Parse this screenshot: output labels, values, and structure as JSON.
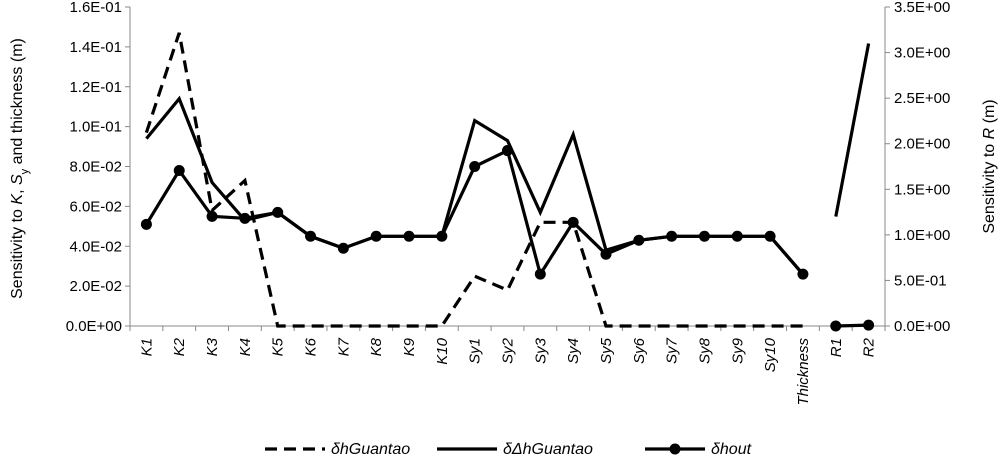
{
  "chart_data": {
    "type": "line",
    "categories": [
      "K1",
      "K2",
      "K3",
      "K4",
      "K5",
      "K6",
      "K7",
      "K8",
      "K9",
      "K10",
      "Sy1",
      "Sy2",
      "Sy3",
      "Sy4",
      "Sy5",
      "Sy6",
      "Sy7",
      "Sy8",
      "Sy9",
      "Sy10",
      "Thickness",
      "R1",
      "R2"
    ],
    "y_left": {
      "label_parts": [
        "Sensitivity to ",
        "K",
        ", ",
        "S",
        "y",
        " and thickness (m)"
      ],
      "ticks": [
        "0.0E+00",
        "2.0E-02",
        "4.0E-02",
        "6.0E-02",
        "8.0E-02",
        "1.0E-01",
        "1.2E-01",
        "1.4E-01",
        "1.6E-01"
      ],
      "ylim": [
        0,
        0.16
      ]
    },
    "y_right": {
      "label_parts": [
        "Sensitivity to ",
        "R",
        " (m)"
      ],
      "ticks": [
        "0.0E+00",
        "5.0E-01",
        "1.0E+00",
        "1.5E+00",
        "2.0E+00",
        "2.5E+00",
        "3.0E+00",
        "3.5E+00"
      ],
      "ylim": [
        0,
        3.5
      ]
    },
    "series": [
      {
        "name": "δhGuantao",
        "style": "dashed",
        "axis": "left",
        "values": [
          0.097,
          0.147,
          0.058,
          0.073,
          0.0,
          0.0,
          0.0,
          0.0,
          0.0,
          0.0,
          0.025,
          0.018,
          0.052,
          0.052,
          0.0,
          0.0,
          0.0,
          0.0,
          0.0,
          0.0,
          0.0,
          null,
          null
        ]
      },
      {
        "name": "δΔhGuantao",
        "style": "solid",
        "axis": "left",
        "values": [
          0.094,
          0.114,
          0.072,
          0.053,
          0.057,
          0.045,
          0.039,
          0.045,
          0.045,
          0.045,
          0.103,
          0.093,
          0.057,
          0.096,
          0.038,
          0.043,
          0.045,
          0.045,
          0.045,
          0.045,
          0.026,
          null,
          null
        ],
        "right_axis_values": [
          null,
          null,
          null,
          null,
          null,
          null,
          null,
          null,
          null,
          null,
          null,
          null,
          null,
          null,
          null,
          null,
          null,
          null,
          null,
          null,
          null,
          1.2,
          3.1
        ]
      },
      {
        "name": "δhout",
        "style": "solid-marker",
        "axis": "left",
        "values": [
          0.051,
          0.078,
          0.055,
          0.054,
          0.057,
          0.045,
          0.039,
          0.045,
          0.045,
          0.045,
          0.08,
          0.088,
          0.026,
          0.052,
          0.036,
          0.043,
          0.045,
          0.045,
          0.045,
          0.045,
          0.026,
          null,
          null
        ],
        "right_axis_values": [
          null,
          null,
          null,
          null,
          null,
          null,
          null,
          null,
          null,
          null,
          null,
          null,
          null,
          null,
          null,
          null,
          null,
          null,
          null,
          null,
          null,
          0.0,
          0.01
        ]
      }
    ],
    "legend_position": "bottom",
    "grid": false
  }
}
